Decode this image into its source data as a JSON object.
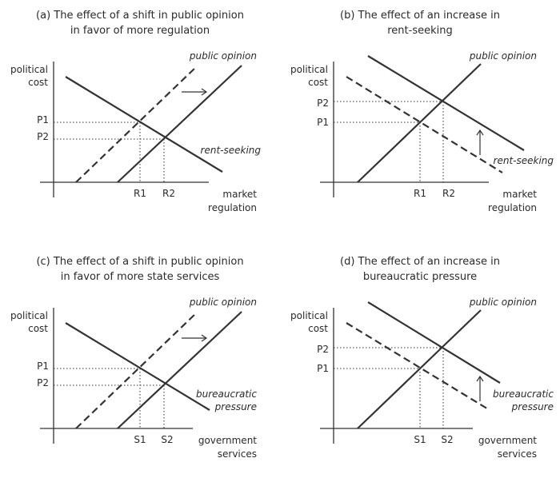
{
  "panels": [
    {
      "title_line1": "(a) The effect of a shift in public opinion",
      "title_line2": "in favor of more regulation",
      "y_axis_label_line1": "political",
      "y_axis_label_line2": "cost",
      "x_axis_label_line1": "market",
      "x_axis_label_line2": "regulation",
      "supply_curve_label": "public opinion",
      "demand_curve_label_line1": "rent-seeking",
      "demand_curve_label_line2": "",
      "price_label_1": "P1",
      "price_label_2": "P2",
      "quantity_label_1": "R1",
      "quantity_label_2": "R2",
      "shift": "public opinion shifts right"
    },
    {
      "title_line1": "(b) The effect of an increase in",
      "title_line2": "rent-seeking",
      "y_axis_label_line1": "political",
      "y_axis_label_line2": "cost",
      "x_axis_label_line1": "market",
      "x_axis_label_line2": "regulation",
      "supply_curve_label": "public opinion",
      "demand_curve_label_line1": "rent-seeking",
      "demand_curve_label_line2": "",
      "price_label_1": "P2",
      "price_label_2": "P1",
      "quantity_label_1": "R1",
      "quantity_label_2": "R2",
      "shift": "rent-seeking shifts up"
    },
    {
      "title_line1": "(c) The effect of a shift in public opinion",
      "title_line2": "in favor of more state services",
      "y_axis_label_line1": "political",
      "y_axis_label_line2": "cost",
      "x_axis_label_line1": "government",
      "x_axis_label_line2": "services",
      "supply_curve_label": "public opinion",
      "demand_curve_label_line1": "bureaucratic",
      "demand_curve_label_line2": "pressure",
      "price_label_1": "P1",
      "price_label_2": "P2",
      "quantity_label_1": "S1",
      "quantity_label_2": "S2",
      "shift": "public opinion shifts right"
    },
    {
      "title_line1": "(d) The effect of an increase in",
      "title_line2": "bureaucratic pressure",
      "y_axis_label_line1": "political",
      "y_axis_label_line2": "cost",
      "x_axis_label_line1": "government",
      "x_axis_label_line2": "services",
      "supply_curve_label": "public opinion",
      "demand_curve_label_line1": "bureaucratic",
      "demand_curve_label_line2": "pressure",
      "price_label_1": "P2",
      "price_label_2": "P1",
      "quantity_label_1": "S1",
      "quantity_label_2": "S2",
      "shift": "bureaucratic pressure shifts up"
    }
  ],
  "colors": {
    "ink": "#333333",
    "background": "#ffffff"
  }
}
